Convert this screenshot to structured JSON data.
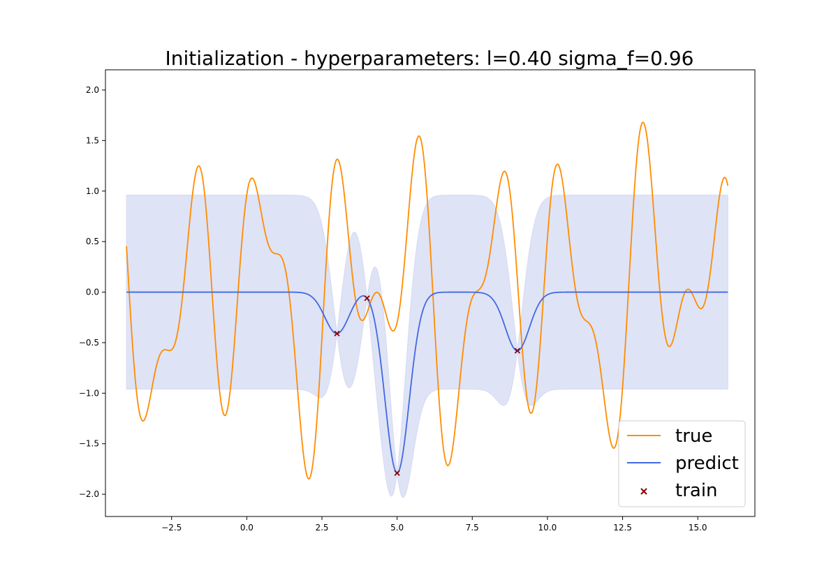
{
  "chart_data": {
    "type": "line",
    "title": "Initialization - hyperparameters:  l=0.40 sigma_f=0.96",
    "xlabel": "",
    "ylabel": "",
    "xlim": [
      -4.7,
      16.9
    ],
    "ylim": [
      -2.22,
      2.2
    ],
    "x_ticks": [
      -2.5,
      0.0,
      2.5,
      5.0,
      7.5,
      10.0,
      12.5,
      15.0
    ],
    "x_tick_labels": [
      "−2.5",
      "0.0",
      "2.5",
      "5.0",
      "7.5",
      "10.0",
      "12.5",
      "15.0"
    ],
    "y_ticks": [
      -2.0,
      -1.5,
      -1.0,
      -0.5,
      0.0,
      0.5,
      1.0,
      1.5,
      2.0
    ],
    "y_tick_labels": [
      "−2.0",
      "−1.5",
      "−1.0",
      "−0.5",
      "0.0",
      "0.5",
      "1.0",
      "1.5",
      "2.0"
    ],
    "x_range": [
      -4.0,
      16.0
    ],
    "length_scale": 0.4,
    "sigma_f": 0.96,
    "band_sigmas": 1,
    "true_function": {
      "name": "true",
      "color": "#ff8c00",
      "expression": "sin(2.5*x) + 0.6*sin(4.3*x+1.7) + 0.4*cos(1.3*x+0.4)"
    },
    "predict_series": {
      "name": "predict",
      "color": "#4169e1"
    },
    "band_color": "#d4daf3",
    "train": {
      "name": "train",
      "color": "#8b0000",
      "x": [
        3.0,
        4.0,
        5.0,
        9.0
      ],
      "y": [
        -0.41,
        -0.06,
        -1.79,
        -0.58
      ]
    },
    "legend": {
      "position": "lower-right",
      "entries": [
        "true",
        "predict",
        "train"
      ]
    }
  }
}
